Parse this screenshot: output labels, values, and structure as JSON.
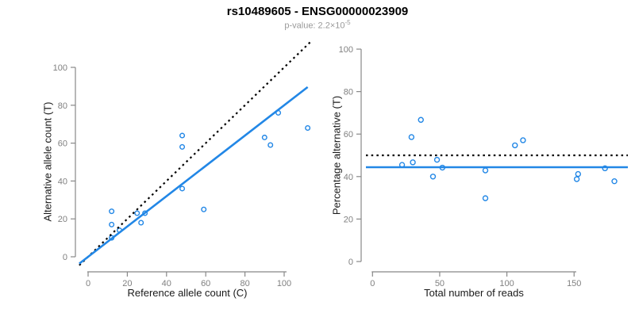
{
  "header": {
    "title": "rs10489605 - ENSG00000023909",
    "subtitle_prefix": "p-value: 2.2×10",
    "subtitle_exponent": "-5"
  },
  "colors": {
    "accent_blue": "#2287E6",
    "dotted_line": "#000000",
    "axis": "#888888",
    "tick_label": "#808080",
    "axis_title": "#1A1A1A",
    "subtitle": "#999999"
  },
  "marker": {
    "shape": "open-circle",
    "color": "#2287E6",
    "filled": false
  },
  "chart_data": [
    {
      "type": "scatter",
      "name": "allele-counts-panel",
      "xlabel": "Reference allele count (C)",
      "ylabel": "Alternative allele count (T)",
      "xlim": [
        0,
        100
      ],
      "ylim": [
        0,
        100
      ],
      "xticks": [
        0,
        20,
        40,
        60,
        80,
        100
      ],
      "yticks": [
        0,
        20,
        40,
        60,
        80,
        100
      ],
      "grid": false,
      "legend": "none",
      "points": [
        [
          12,
          24
        ],
        [
          12,
          17
        ],
        [
          12,
          10
        ],
        [
          16,
          14
        ],
        [
          25,
          23
        ],
        [
          27,
          18
        ],
        [
          29,
          23
        ],
        [
          48,
          36
        ],
        [
          48,
          58
        ],
        [
          48,
          64
        ],
        [
          59,
          25
        ],
        [
          90,
          63
        ],
        [
          93,
          59
        ],
        [
          97,
          76
        ],
        [
          112,
          68
        ]
      ],
      "lines": [
        {
          "name": "identity-line",
          "style": "dotted",
          "color": "black",
          "slope": 1,
          "intercept": 0
        },
        {
          "name": "fit-line",
          "style": "solid",
          "color": "blue",
          "slope": 0.8,
          "intercept": 0
        }
      ]
    },
    {
      "type": "scatter",
      "name": "percentage-panel",
      "xlabel": "Total number of reads",
      "ylabel": "Percentage alternative (T)",
      "xlim": [
        0,
        150
      ],
      "ylim": [
        0,
        100
      ],
      "xticks": [
        0,
        50,
        100,
        150
      ],
      "yticks": [
        0,
        20,
        40,
        60,
        80,
        100
      ],
      "grid": false,
      "legend": "none",
      "points": [
        [
          36,
          66.7
        ],
        [
          29,
          58.6
        ],
        [
          22,
          45.5
        ],
        [
          30,
          46.7
        ],
        [
          48,
          47.9
        ],
        [
          45,
          40.0
        ],
        [
          52,
          44.2
        ],
        [
          84,
          42.9
        ],
        [
          106,
          54.7
        ],
        [
          112,
          57.1
        ],
        [
          84,
          29.8
        ],
        [
          153,
          41.2
        ],
        [
          152,
          38.8
        ],
        [
          173,
          43.9
        ],
        [
          180,
          37.8
        ]
      ],
      "lines": [
        {
          "name": "fifty-percent-line",
          "style": "dotted",
          "color": "black",
          "y": 50
        },
        {
          "name": "mean-percentage-line",
          "style": "solid",
          "color": "blue",
          "y": 44.4
        }
      ]
    }
  ]
}
